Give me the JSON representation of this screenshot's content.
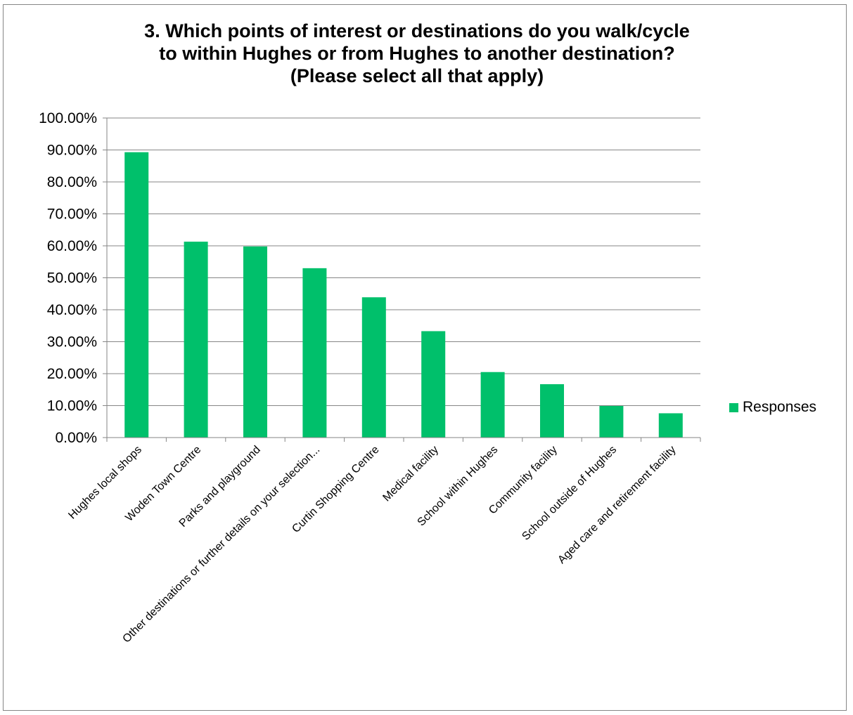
{
  "chart_data": {
    "type": "bar",
    "title": [
      "3. Which points of interest or destinations do you walk/cycle",
      "to within Hughes or from Hughes to another destination?",
      "(Please select all that apply)"
    ],
    "categories": [
      "Hughes local shops",
      "Woden Town Centre",
      "Parks and playground",
      "Other destinations or further details on your selection...",
      "Curtin Shopping Centre",
      "Medical facility",
      "School within Hughes",
      "Community facility",
      "School outside of Hughes",
      "Aged care and retirement facility"
    ],
    "series": [
      {
        "name": "Responses",
        "values": [
          89.3,
          61.3,
          59.8,
          53.0,
          43.9,
          33.3,
          20.5,
          16.7,
          9.9,
          7.6
        ]
      }
    ],
    "ylim": [
      0,
      100
    ],
    "yticks": [
      "0.00%",
      "10.00%",
      "20.00%",
      "30.00%",
      "40.00%",
      "50.00%",
      "60.00%",
      "70.00%",
      "80.00%",
      "90.00%",
      "100.00%"
    ],
    "grid": true,
    "legend": "right",
    "bar_color": "#00c06b",
    "grid_color": "#868686"
  }
}
